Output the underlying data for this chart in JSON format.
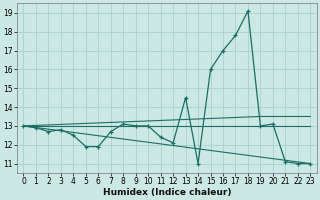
{
  "xlabel": "Humidex (Indice chaleur)",
  "bg_color": "#cce8e4",
  "grid_color": "#aacfcc",
  "line_color": "#1a6e65",
  "ylim": [
    10.5,
    19.5
  ],
  "xlim": [
    -0.5,
    23.5
  ],
  "yticks": [
    11,
    12,
    13,
    14,
    15,
    16,
    17,
    18,
    19
  ],
  "xticks": [
    0,
    1,
    2,
    3,
    4,
    5,
    6,
    7,
    8,
    9,
    10,
    11,
    12,
    13,
    14,
    15,
    16,
    17,
    18,
    19,
    20,
    21,
    22,
    23
  ],
  "series_main": {
    "x": [
      0,
      1,
      2,
      3,
      4,
      5,
      6,
      7,
      8,
      9,
      10,
      11,
      12,
      13,
      14,
      15,
      16,
      17,
      18,
      19,
      20,
      21,
      22,
      23
    ],
    "y": [
      13.0,
      12.9,
      12.7,
      12.8,
      12.5,
      11.9,
      11.9,
      12.7,
      13.1,
      13.0,
      13.0,
      12.4,
      12.1,
      14.5,
      11.0,
      16.0,
      17.0,
      17.8,
      19.1,
      13.0,
      13.1,
      11.1,
      11.0,
      11.0
    ]
  },
  "series_flat": {
    "x": [
      0,
      23
    ],
    "y": [
      13.0,
      13.0
    ]
  },
  "series_decline": {
    "x": [
      0,
      23
    ],
    "y": [
      13.0,
      11.0
    ]
  },
  "series_rise": {
    "x": [
      0,
      19,
      23
    ],
    "y": [
      13.0,
      13.5,
      13.5
    ]
  }
}
